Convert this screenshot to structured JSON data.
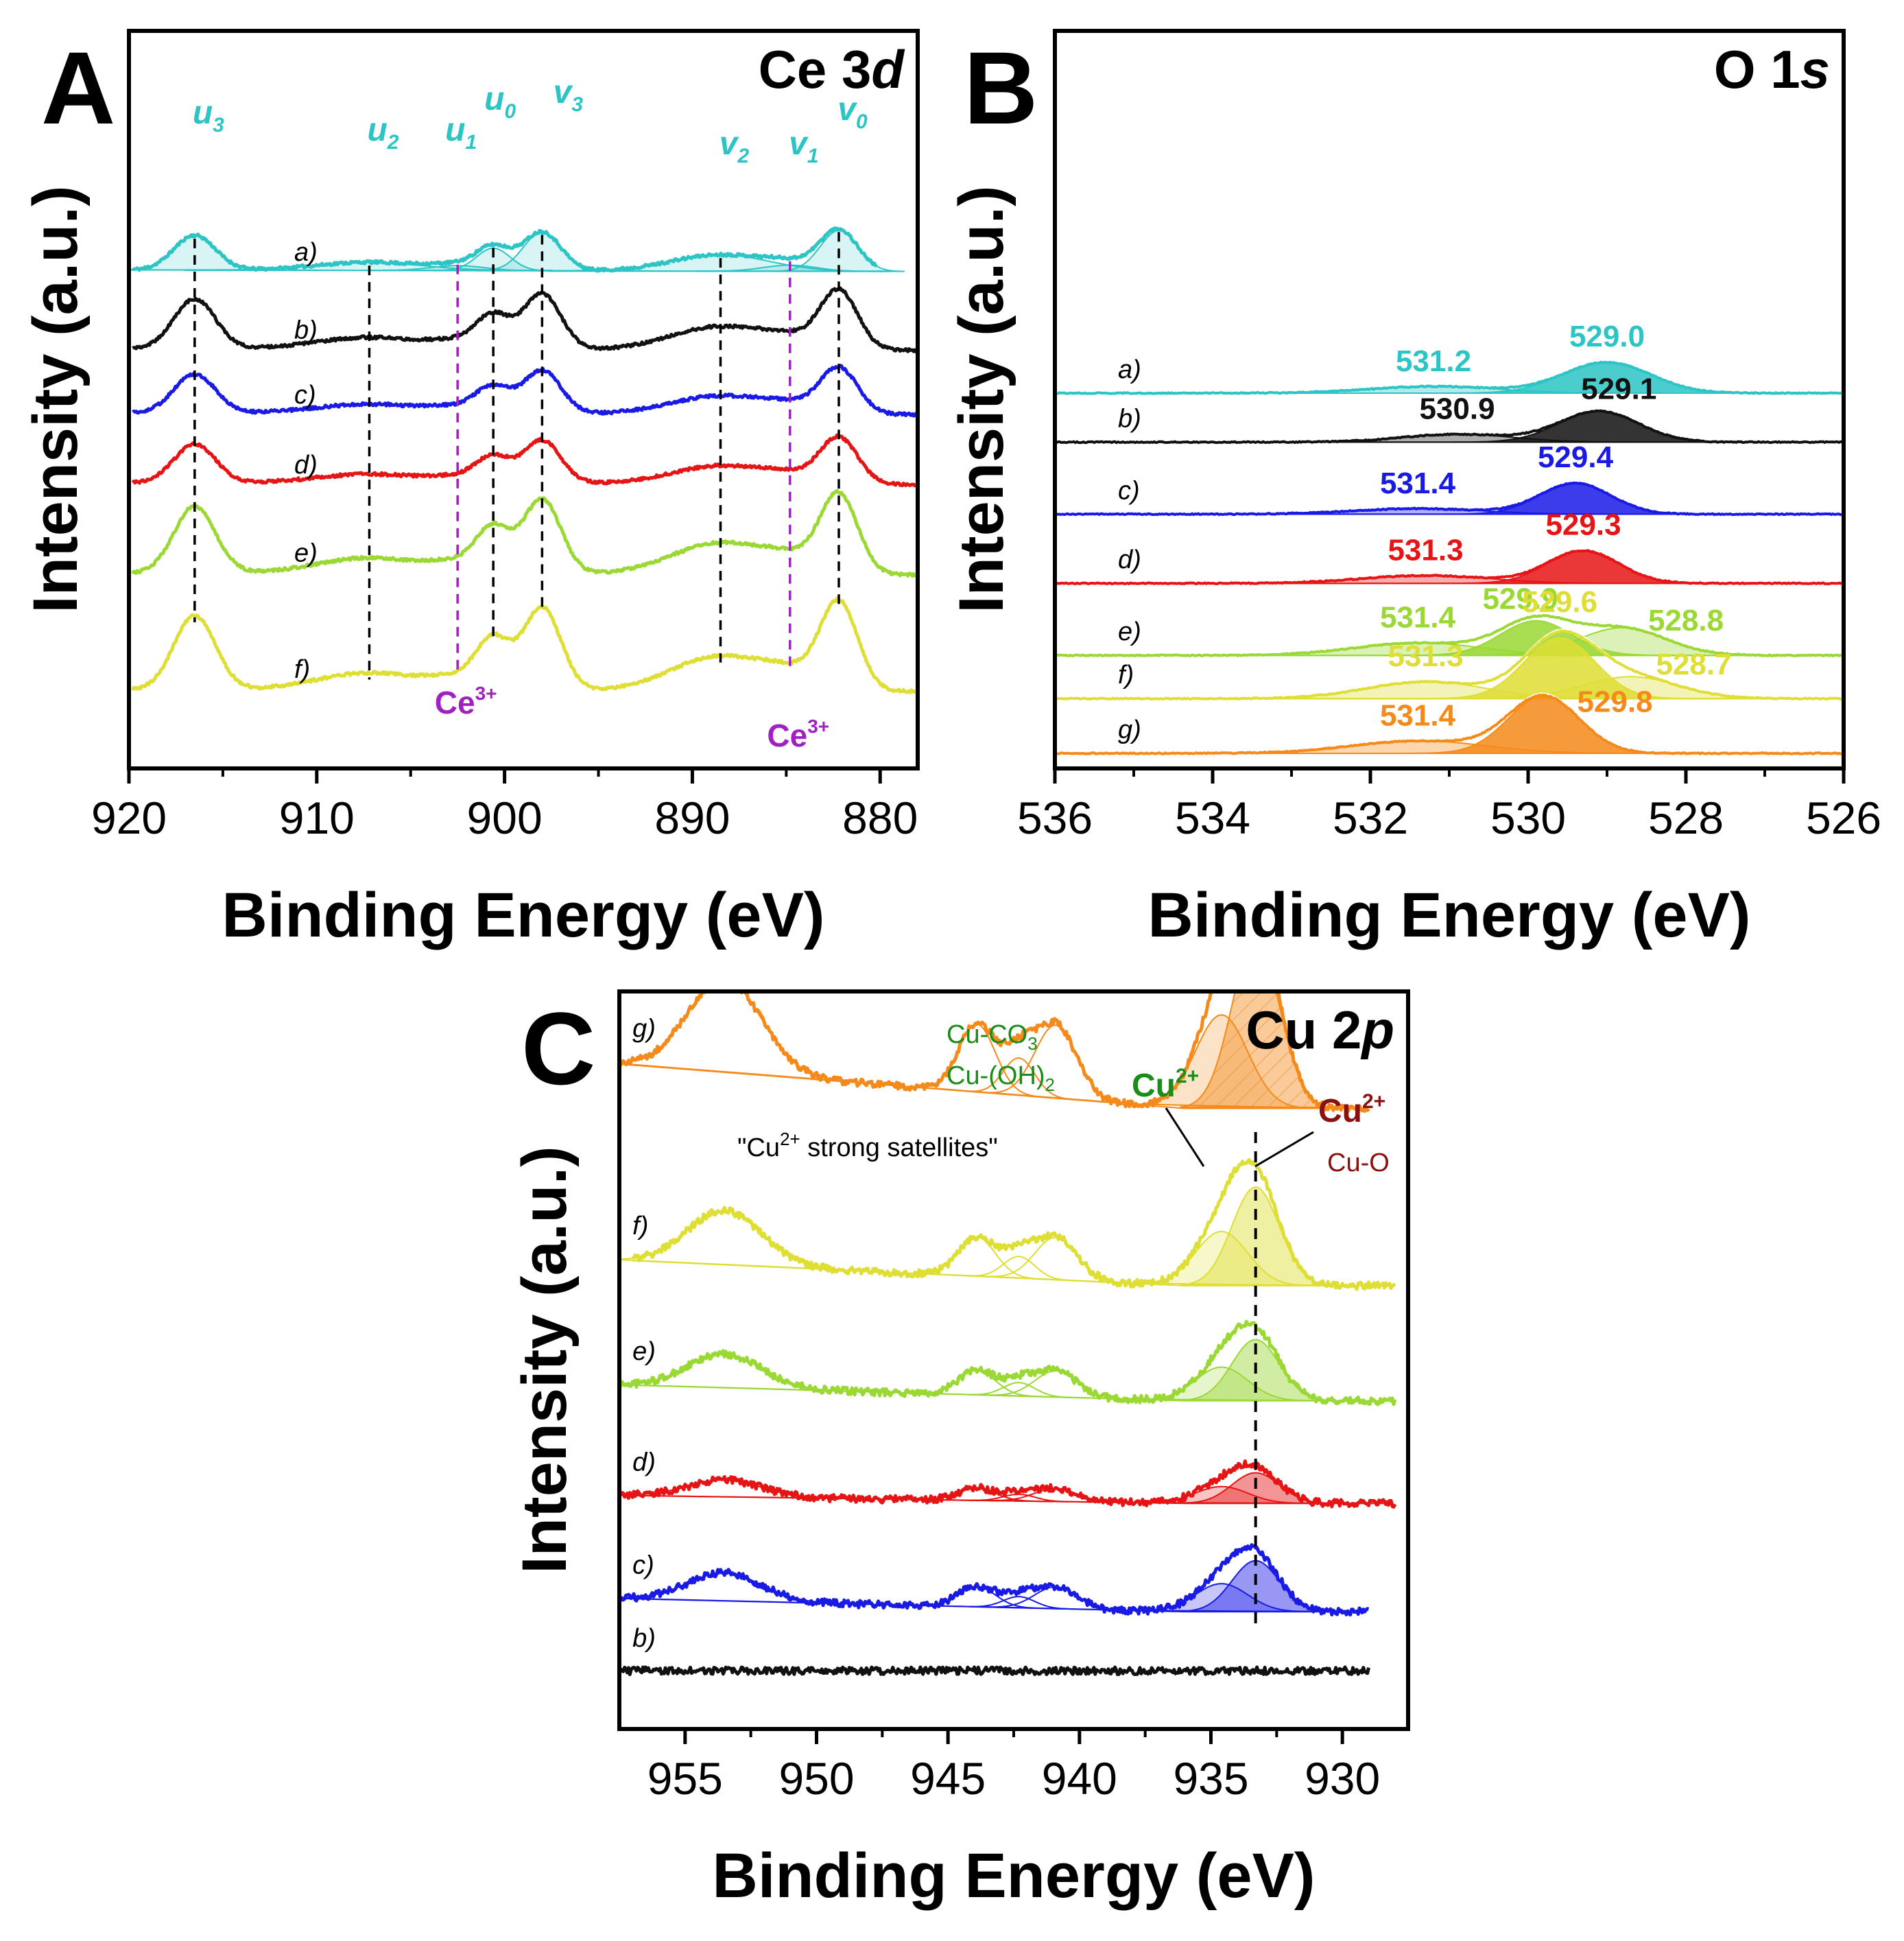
{
  "figure": {
    "trace_colors": {
      "a": "#2cc4c4",
      "b": "#111111",
      "c": "#1a1ae6",
      "d": "#e61414",
      "e": "#9ad834",
      "f": "#dede34",
      "g": "#f58a1a"
    },
    "marker_color": "#a020c0"
  },
  "chart_data": [
    {
      "panel": "A",
      "type": "line",
      "title": "Ce 3d",
      "title_main": "Ce 3",
      "title_italic": "d",
      "xlabel": "Binding Energy (eV)",
      "ylabel": "Intensity (a.u.)",
      "xlim": [
        920,
        878
      ],
      "xticks": [
        920,
        910,
        900,
        890,
        880
      ],
      "x_tick_labels": [
        "920",
        "910",
        "900",
        "890",
        "880"
      ],
      "series": [
        {
          "name": "a)",
          "key": "a",
          "offset": 7.4,
          "amp": 0.7,
          "fill": true
        },
        {
          "name": "b)",
          "key": "b",
          "offset": 6.05,
          "amp": 1.0,
          "fill": false
        },
        {
          "name": "c)",
          "key": "c",
          "offset": 4.95,
          "amp": 0.78,
          "fill": false
        },
        {
          "name": "d)",
          "key": "d",
          "offset": 3.75,
          "amp": 0.78,
          "fill": false
        },
        {
          "name": "e)",
          "key": "e",
          "offset": 2.2,
          "amp": 1.35,
          "fill": false
        },
        {
          "name": "f)",
          "key": "f",
          "offset": 0.2,
          "amp": 1.5,
          "fill": false
        }
      ],
      "peaks": [
        {
          "label": "u",
          "sub": "3",
          "position": 916.5,
          "rel_height": 0.85,
          "width": 1.1
        },
        {
          "label": "u",
          "sub": "2",
          "position": 907.2,
          "rel_height": 0.2,
          "width": 2.8
        },
        {
          "label": "u",
          "sub": "1",
          "position": 902.5,
          "rel_height": 0.12,
          "width": 1.4
        },
        {
          "label": "u",
          "sub": "0",
          "position": 900.6,
          "rel_height": 0.55,
          "width": 0.9
        },
        {
          "label": "v",
          "sub": "3",
          "position": 898.0,
          "rel_height": 0.95,
          "width": 1.0
        },
        {
          "label": "v",
          "sub": "2",
          "position": 888.5,
          "rel_height": 0.4,
          "width": 2.6
        },
        {
          "label": "v",
          "sub": "1",
          "position": 884.8,
          "rel_height": 0.15,
          "width": 1.4
        },
        {
          "label": "v",
          "sub": "0",
          "position": 882.2,
          "rel_height": 1.0,
          "width": 1.0
        }
      ],
      "dashed_lines_black": [
        916.5,
        907.2,
        900.6,
        898.0,
        888.5,
        882.2
      ],
      "dashed_lines_purple": [
        902.5,
        884.8
      ],
      "annotations": [
        {
          "text": "Ce",
          "sup": "3+",
          "x": 902.5
        },
        {
          "text": "Ce",
          "sup": "3+",
          "x": 884.8
        }
      ]
    },
    {
      "panel": "B",
      "type": "line",
      "title": "O 1s",
      "title_main": "O 1",
      "title_italic": "s",
      "xlabel": "Binding Energy (eV)",
      "ylabel": "Intensity (a.u.)",
      "xlim": [
        536,
        526
      ],
      "xticks": [
        536,
        534,
        532,
        530,
        528,
        526
      ],
      "x_tick_labels": [
        "536",
        "534",
        "532",
        "530",
        "528",
        "526"
      ],
      "series": [
        {
          "name": "a)",
          "key": "a",
          "offset": 6.25,
          "peaks": [
            [
              529.0,
              0.55,
              0.55
            ],
            [
              531.2,
              0.12,
              0.8
            ]
          ],
          "labels": [
            {
              "text": "531.2",
              "x": 531.2
            },
            {
              "text": "529.0",
              "x": 529.0
            }
          ]
        },
        {
          "name": "b)",
          "key": "b",
          "offset": 5.4,
          "peaks": [
            [
              529.1,
              0.55,
              0.5
            ],
            [
              530.9,
              0.14,
              0.7
            ]
          ],
          "labels": [
            {
              "text": "530.9",
              "x": 530.9
            },
            {
              "text": "529.1",
              "x": 528.85
            }
          ]
        },
        {
          "name": "c)",
          "key": "c",
          "offset": 4.15,
          "peaks": [
            [
              529.4,
              0.55,
              0.45
            ],
            [
              531.4,
              0.1,
              0.8
            ]
          ],
          "labels": [
            {
              "text": "531.4",
              "x": 531.4
            },
            {
              "text": "529.4",
              "x": 529.4
            }
          ]
        },
        {
          "name": "d)",
          "key": "d",
          "offset": 2.95,
          "peaks": [
            [
              529.3,
              0.58,
              0.45
            ],
            [
              531.3,
              0.14,
              0.8
            ]
          ],
          "labels": [
            {
              "text": "531.3",
              "x": 531.3
            },
            {
              "text": "529.3",
              "x": 529.3
            }
          ]
        },
        {
          "name": "e)",
          "key": "e",
          "offset": 1.7,
          "peaks": [
            [
              529.9,
              0.6,
              0.45
            ],
            [
              528.8,
              0.48,
              0.55
            ],
            [
              531.4,
              0.22,
              0.8
            ]
          ],
          "labels": [
            {
              "text": "531.4",
              "x": 531.4
            },
            {
              "text": "529.9",
              "x": 530.1
            },
            {
              "text": "528.8",
              "x": 528.0
            }
          ]
        },
        {
          "name": "f)",
          "key": "f",
          "offset": 0.95,
          "peaks": [
            [
              529.6,
              1.05,
              0.45
            ],
            [
              528.7,
              0.38,
              0.6
            ],
            [
              531.3,
              0.3,
              0.75
            ]
          ],
          "labels": [
            {
              "text": "531.3",
              "x": 531.3
            },
            {
              "text": "529.6",
              "x": 529.6
            },
            {
              "text": "528.7",
              "x": 527.9
            }
          ]
        },
        {
          "name": "g)",
          "key": "g",
          "offset": 0.0,
          "peaks": [
            [
              529.8,
              1.0,
              0.45
            ],
            [
              531.4,
              0.22,
              0.85
            ]
          ],
          "labels": [
            {
              "text": "531.4",
              "x": 531.4
            },
            {
              "text": "529.8",
              "x": 528.9
            }
          ]
        }
      ]
    },
    {
      "panel": "C",
      "type": "line",
      "title": "Cu 2p",
      "title_main": "Cu 2",
      "title_italic": "p",
      "xlabel": "Binding Energy (eV)",
      "ylabel": "Intensity (a.u.)",
      "xlim": [
        957.5,
        927.5
      ],
      "xticks": [
        955,
        950,
        945,
        940,
        935,
        930
      ],
      "x_tick_labels": [
        "955",
        "950",
        "945",
        "940",
        "935",
        "930"
      ],
      "series": [
        {
          "name": "g)",
          "key": "g",
          "offset": 7.4,
          "amp": 1.0,
          "x_start": 957.5,
          "x_end": 929.0
        },
        {
          "name": "f)",
          "key": "f",
          "offset": 5.25,
          "amp": 0.58,
          "x_start": 957.0,
          "x_end": 928.0
        },
        {
          "name": "e)",
          "key": "e",
          "offset": 3.85,
          "amp": 0.36,
          "x_start": 957.5,
          "x_end": 928.0
        },
        {
          "name": "d)",
          "key": "d",
          "offset": 2.6,
          "amp": 0.18,
          "x_start": 957.5,
          "x_end": 928.0
        },
        {
          "name": "c)",
          "key": "c",
          "offset": 1.25,
          "amp": 0.3,
          "x_start": 957.5,
          "x_end": 929.0
        },
        {
          "name": "b)",
          "key": "b",
          "offset": 0.55,
          "amp": 0.0,
          "x_start": 957.5,
          "x_end": 929.0
        }
      ],
      "peaks": [
        {
          "position": 933.3,
          "rel_height": 1.0,
          "width": 0.9
        },
        {
          "position": 934.6,
          "rel_height": 0.55,
          "width": 1.0
        },
        {
          "position": 953.5,
          "rel_height": 0.55,
          "width": 1.4
        },
        {
          "position": 943.9,
          "rel_height": 0.4,
          "width": 0.7
        },
        {
          "position": 942.3,
          "rel_height": 0.22,
          "width": 0.6
        },
        {
          "position": 940.9,
          "rel_height": 0.43,
          "width": 0.8
        }
      ],
      "dashed_line": 933.3,
      "satellite_label": "\"Cu",
      "satellite_sup": "2+",
      "satellite_rest": " strong satellites\"",
      "cu_co3_main": "Cu-CO",
      "cu_co3_sub": "3",
      "cu_oh2_main": "Cu-(OH)",
      "cu_oh2_sub": "2",
      "cu2_left": "Cu",
      "cu2_left_sup": "2+",
      "cu2_right": "Cu",
      "cu2_right_sup": "2+",
      "cu_o": "Cu-O",
      "green_label_color": "#1a8c1a",
      "dark_red_color": "#8b1010"
    }
  ]
}
